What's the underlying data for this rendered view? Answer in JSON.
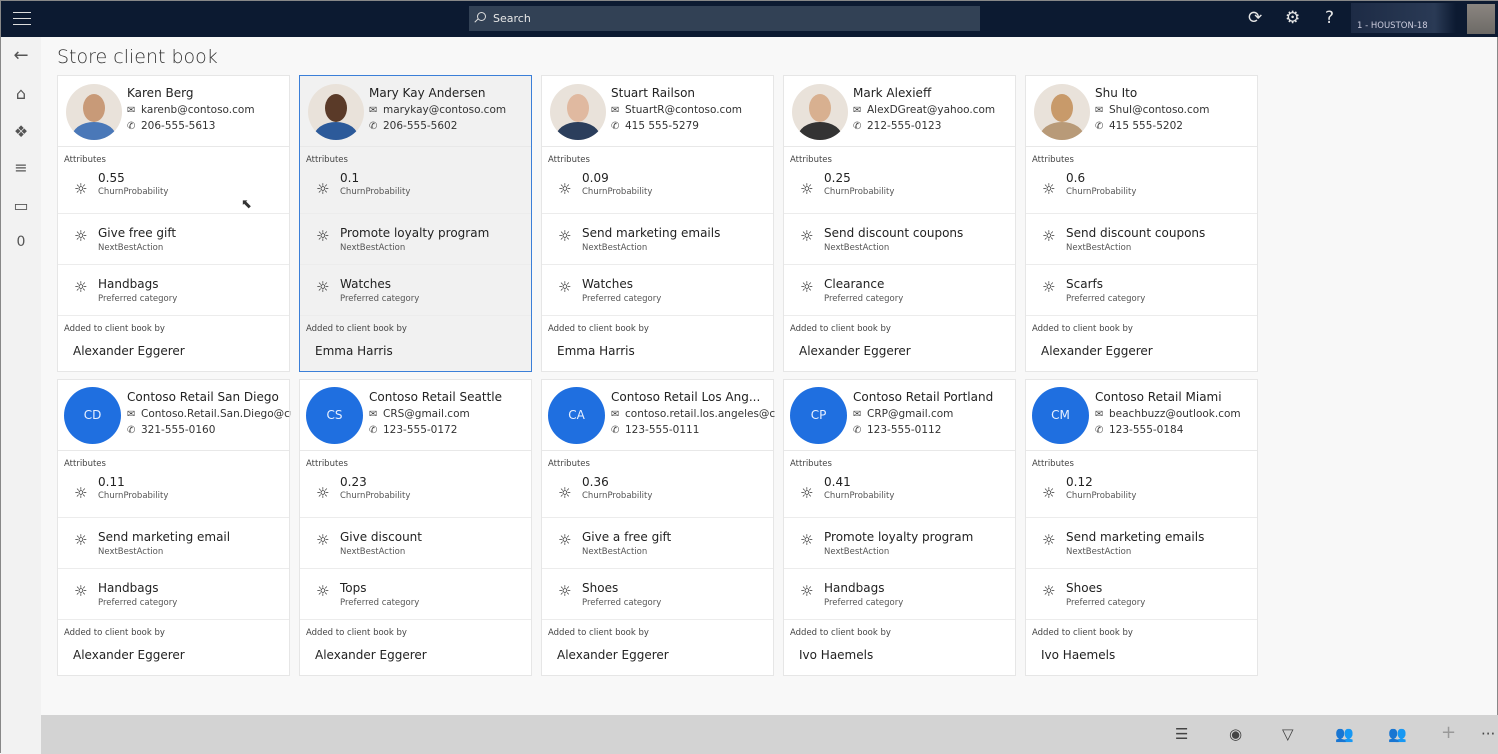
{
  "topbar": {
    "search_placeholder": "Search",
    "user_label": "1 - HOUSTON-18",
    "icons": [
      "refresh-icon",
      "settings-icon",
      "help-icon"
    ]
  },
  "leftnav": {
    "badge_count": "0"
  },
  "page": {
    "title": "Store client book"
  },
  "labels": {
    "attributes": "Attributes",
    "added_by": "Added to client book by",
    "churn": "ChurnProbability",
    "nba": "NextBestAction",
    "pref": "Preferred category"
  },
  "colors": {
    "accent": "#1f6fe0",
    "topbar": "#0c1a31"
  },
  "cards": [
    {
      "name": "Karen Berg",
      "email": "karenb@contoso.com",
      "phone": "206-555-5613",
      "photo": true,
      "churn": "0.55",
      "nba": "Give free gift",
      "pref": "Handbags",
      "added_by": "Alexander Eggerer"
    },
    {
      "name": "Mary Kay Andersen",
      "email": "marykay@contoso.com",
      "phone": "206-555-5602",
      "photo": true,
      "selected": true,
      "churn": "0.1",
      "nba": "Promote loyalty program",
      "pref": "Watches",
      "added_by": "Emma Harris"
    },
    {
      "name": "Stuart Railson",
      "email": "StuartR@contoso.com",
      "phone": "415 555-5279",
      "photo": true,
      "churn": "0.09",
      "nba": "Send marketing emails",
      "pref": "Watches",
      "added_by": "Emma Harris"
    },
    {
      "name": "Mark Alexieff",
      "email": "AlexDGreat@yahoo.com",
      "phone": "212-555-0123",
      "photo": true,
      "churn": "0.25",
      "nba": "Send discount coupons",
      "pref": "Clearance",
      "added_by": "Alexander Eggerer"
    },
    {
      "name": "Shu Ito",
      "email": "ShuI@contoso.com",
      "phone": "415 555-5202",
      "photo": true,
      "churn": "0.6",
      "nba": "Send discount coupons",
      "pref": "Scarfs",
      "added_by": "Alexander Eggerer"
    },
    {
      "name": "Contoso Retail San Diego",
      "initials": "CD",
      "email": "Contoso.Retail.San.Diego@cust",
      "phone": "321-555-0160",
      "churn": "0.11",
      "nba": "Send marketing email",
      "pref": "Handbags",
      "added_by": "Alexander Eggerer"
    },
    {
      "name": "Contoso Retail Seattle",
      "initials": "CS",
      "email": "CRS@gmail.com",
      "phone": "123-555-0172",
      "churn": "0.23",
      "nba": "Give discount",
      "pref": "Tops",
      "added_by": "Alexander Eggerer"
    },
    {
      "name": "Contoso Retail Los Ang...",
      "initials": "CA",
      "email": "contoso.retail.los.angeles@cust",
      "phone": "123-555-0111",
      "churn": "0.36",
      "nba": "Give a free gift",
      "pref": "Shoes",
      "added_by": "Alexander Eggerer"
    },
    {
      "name": "Contoso Retail Portland",
      "initials": "CP",
      "email": "CRP@gmail.com",
      "phone": "123-555-0112",
      "churn": "0.41",
      "nba": "Promote loyalty program",
      "pref": "Handbags",
      "added_by": "Ivo Haemels"
    },
    {
      "name": "Contoso Retail Miami",
      "initials": "CM",
      "email": "beachbuzz@outlook.com",
      "phone": "123-555-0184",
      "churn": "0.12",
      "nba": "Send marketing emails",
      "pref": "Shoes",
      "added_by": "Ivo Haemels"
    }
  ]
}
